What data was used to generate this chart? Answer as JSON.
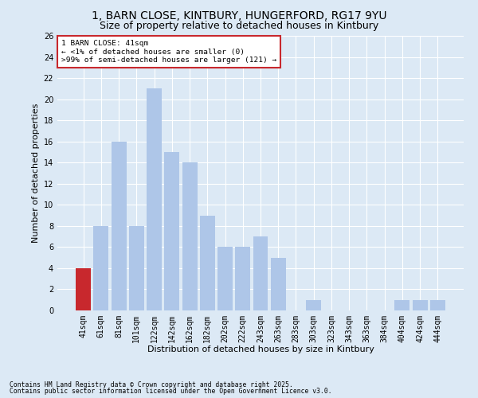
{
  "title1": "1, BARN CLOSE, KINTBURY, HUNGERFORD, RG17 9YU",
  "title2": "Size of property relative to detached houses in Kintbury",
  "xlabel": "Distribution of detached houses by size in Kintbury",
  "ylabel": "Number of detached properties",
  "footnote1": "Contains HM Land Registry data © Crown copyright and database right 2025.",
  "footnote2": "Contains public sector information licensed under the Open Government Licence v3.0.",
  "bar_labels": [
    "41sqm",
    "61sqm",
    "81sqm",
    "101sqm",
    "122sqm",
    "142sqm",
    "162sqm",
    "182sqm",
    "202sqm",
    "222sqm",
    "243sqm",
    "263sqm",
    "283sqm",
    "303sqm",
    "323sqm",
    "343sqm",
    "363sqm",
    "384sqm",
    "404sqm",
    "424sqm",
    "444sqm"
  ],
  "bar_values": [
    4,
    8,
    16,
    8,
    21,
    15,
    14,
    9,
    6,
    6,
    7,
    5,
    0,
    1,
    0,
    0,
    0,
    0,
    1,
    1,
    1
  ],
  "bar_color": "#aec6e8",
  "highlight_bar_index": 0,
  "highlight_bar_color": "#c8282d",
  "annotation_text": "1 BARN CLOSE: 41sqm\n← <1% of detached houses are smaller (0)\n>99% of semi-detached houses are larger (121) →",
  "annotation_box_color": "#c8282d",
  "ylim": [
    0,
    26
  ],
  "yticks": [
    0,
    2,
    4,
    6,
    8,
    10,
    12,
    14,
    16,
    18,
    20,
    22,
    24,
    26
  ],
  "background_color": "#dce9f5",
  "grid_color": "#ffffff",
  "title_fontsize": 10,
  "subtitle_fontsize": 9,
  "axis_label_fontsize": 8,
  "tick_fontsize": 7,
  "annotation_fontsize": 6.8,
  "footnote_fontsize": 5.8
}
